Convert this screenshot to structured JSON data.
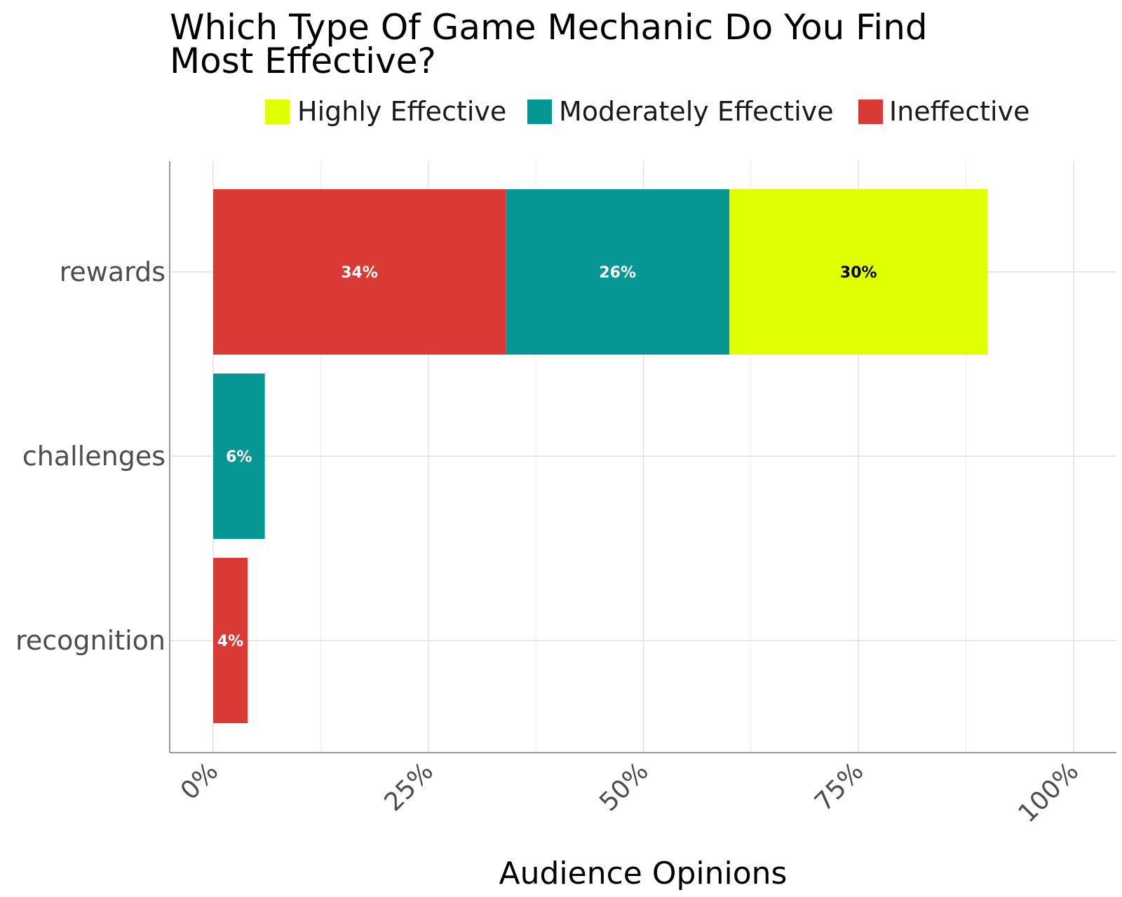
{
  "chart_data": {
    "type": "bar",
    "orientation": "horizontal",
    "stacked": true,
    "title_lines": [
      "Which Type Of Game Mechanic Do You Find",
      "Most Effective?"
    ],
    "xlabel": "Audience Opinions",
    "ylabel": "",
    "xlim": [
      0,
      100
    ],
    "x_ticks": [
      0,
      25,
      50,
      75,
      100
    ],
    "x_tick_labels": [
      "0%",
      "25%",
      "50%",
      "75%",
      "100%"
    ],
    "categories": [
      "rewards",
      "challenges",
      "recognition"
    ],
    "series": [
      {
        "name": "Ineffective",
        "color": "#d93a35",
        "label_color": "#ffffff",
        "values": [
          34,
          0,
          4
        ],
        "labels": [
          "34%",
          "",
          "4%"
        ]
      },
      {
        "name": "Moderately Effective",
        "color": "#069693",
        "label_color": "#ffffff",
        "values": [
          26,
          6,
          0
        ],
        "labels": [
          "26%",
          "6%",
          ""
        ]
      },
      {
        "name": "Highly Effective",
        "color": "#e0ff00",
        "label_color": "#000000",
        "values": [
          30,
          0,
          0
        ],
        "labels": [
          "30%",
          "",
          ""
        ]
      }
    ],
    "legend": {
      "position": "top",
      "order": [
        "Highly Effective",
        "Moderately Effective",
        "Ineffective"
      ]
    },
    "grid": true
  }
}
